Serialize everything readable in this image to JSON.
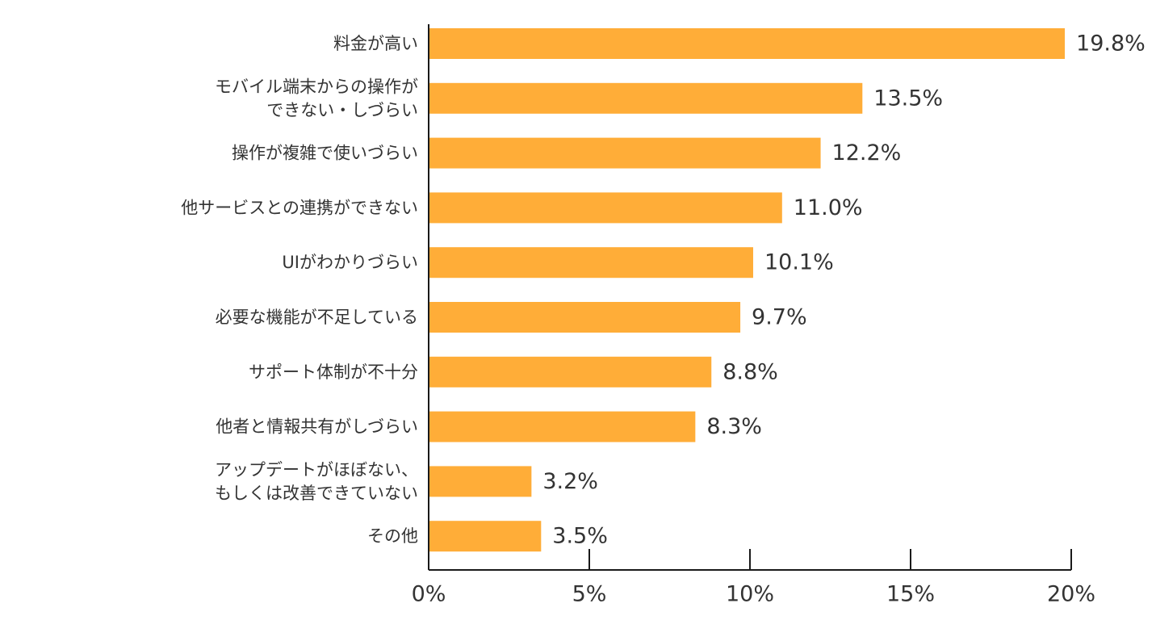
{
  "chart_data": {
    "type": "bar",
    "orientation": "horizontal",
    "categories": [
      [
        "料金が高い"
      ],
      [
        "モバイル端末からの操作が",
        "できない・しづらい"
      ],
      [
        "操作が複雑で使いづらい"
      ],
      [
        "他サービスとの連携ができない"
      ],
      [
        "UIがわかりづらい"
      ],
      [
        "必要な機能が不足している"
      ],
      [
        "サポート体制が不十分"
      ],
      [
        "他者と情報共有がしづらい"
      ],
      [
        "アップデートがほぼない、",
        "もしくは改善できていない"
      ],
      [
        "その他"
      ]
    ],
    "values": [
      19.8,
      13.5,
      12.2,
      11.0,
      10.1,
      9.7,
      8.8,
      8.3,
      3.2,
      3.5
    ],
    "value_labels": [
      "19.8%",
      "13.5%",
      "12.2%",
      "11.0%",
      "10.1%",
      "9.7%",
      "8.8%",
      "8.3%",
      "3.2%",
      "3.5%"
    ],
    "x_ticks": [
      0,
      5,
      10,
      15,
      20
    ],
    "x_tick_labels": [
      "0%",
      "5%",
      "10%",
      "15%",
      "20%"
    ],
    "xlim": [
      0,
      20
    ],
    "bar_color": "#FFAD38",
    "axis_color": "#1a1a1a",
    "text_color": "#333333",
    "grid": false,
    "legend": "none"
  }
}
